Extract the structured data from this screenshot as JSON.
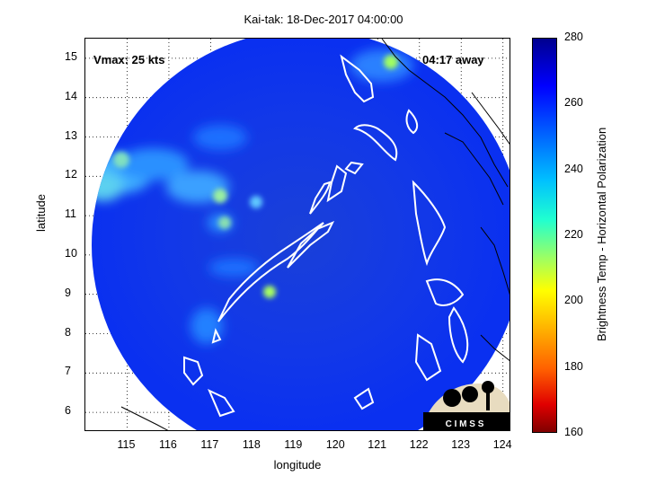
{
  "title": "Kai-tak: 18-Dec-2017 04:00:00",
  "xlabel": "longitude",
  "ylabel": "latitude",
  "overlay_left": "Vmax: 25 kts",
  "overlay_right": "04:17 away",
  "logo_text": "C I M S S",
  "colorbar": {
    "label": "Brightness Temp - Horizontal Polarization",
    "ticks": [
      "280",
      "260",
      "240",
      "220",
      "200",
      "180",
      "160"
    ],
    "range": [
      160,
      280
    ]
  },
  "map_data": {
    "type": "swath map",
    "xlim": [
      114,
      124.2
    ],
    "ylim": [
      5.5,
      15.5
    ],
    "xticks": [
      "115",
      "116",
      "117",
      "118",
      "119",
      "120",
      "121",
      "122",
      "123",
      "124"
    ],
    "yticks": [
      "15",
      "14",
      "13",
      "12",
      "11",
      "10",
      "9",
      "8",
      "7",
      "6"
    ],
    "background_temp": 265,
    "features": [
      {
        "kind": "cloud band",
        "lon": 115.2,
        "lat": 11.9,
        "temp": 240
      },
      {
        "kind": "cloud band",
        "lon": 116.8,
        "lat": 11.5,
        "temp": 245
      },
      {
        "kind": "convective cell",
        "lon": 118.5,
        "lat": 9.0,
        "temp": 225
      },
      {
        "kind": "convective cell",
        "lon": 117.3,
        "lat": 10.8,
        "temp": 235
      },
      {
        "kind": "convective cell",
        "lon": 121.5,
        "lat": 15.0,
        "temp": 225
      }
    ]
  }
}
